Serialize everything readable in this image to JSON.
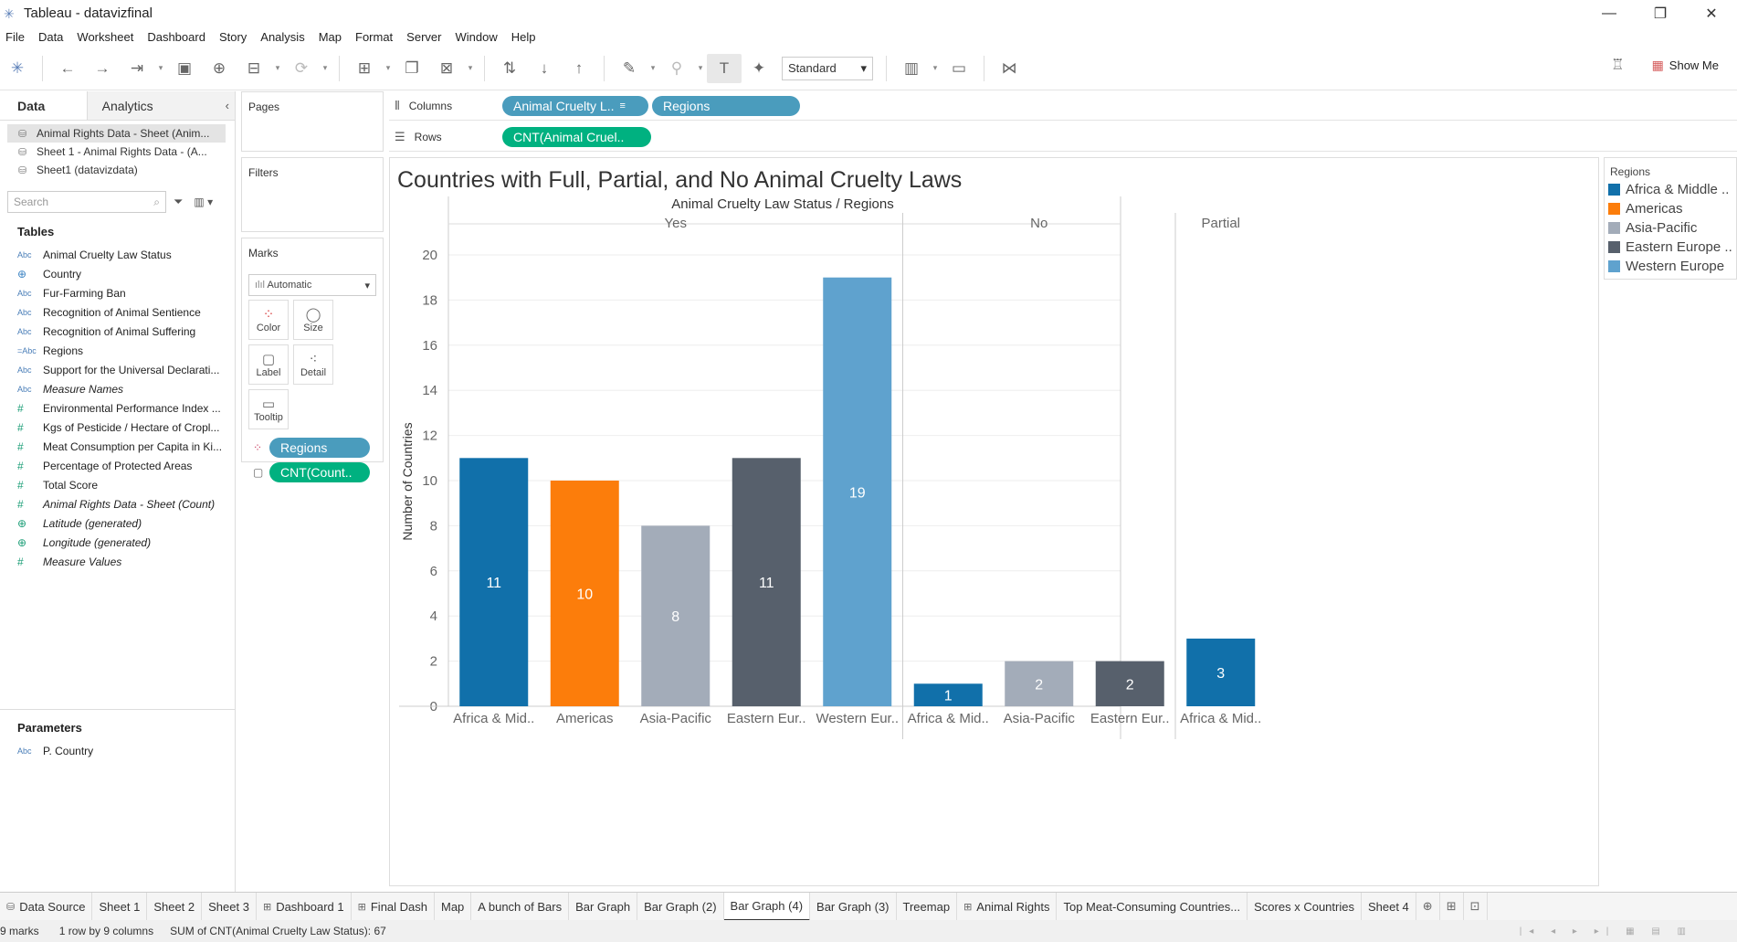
{
  "window": {
    "title": "Tableau - datavizfinal",
    "minimize": "—",
    "restore": "❐",
    "close": "✕"
  },
  "menu": [
    "File",
    "Data",
    "Worksheet",
    "Dashboard",
    "Story",
    "Analysis",
    "Map",
    "Format",
    "Server",
    "Window",
    "Help"
  ],
  "toolbar": {
    "fit_value": "Standard",
    "show_me_label": "Show Me"
  },
  "datapane": {
    "tab_data": "Data",
    "tab_analytics": "Analytics",
    "datasources": [
      "Animal Rights Data - Sheet (Anim...",
      "Sheet 1 - Animal Rights Data - (A...",
      "Sheet1 (datavizdata)"
    ],
    "search_placeholder": "Search",
    "tables_title": "Tables",
    "fields": [
      {
        "type": "Abc",
        "label": "Animal Cruelty Law Status"
      },
      {
        "type": "geo",
        "label": "Country"
      },
      {
        "type": "Abc",
        "label": "Fur-Farming Ban"
      },
      {
        "type": "Abc",
        "label": "Recognition of Animal Sentience"
      },
      {
        "type": "Abc",
        "label": "Recognition of Animal Suffering"
      },
      {
        "type": "Abc",
        "label": "Regions"
      },
      {
        "type": "Abc",
        "label": "Support for the Universal Declarati..."
      },
      {
        "type": "Abc",
        "label": "Measure Names",
        "italic": true
      },
      {
        "type": "#",
        "label": "Environmental Performance Index ..."
      },
      {
        "type": "#",
        "label": "Kgs of Pesticide / Hectare of Cropl..."
      },
      {
        "type": "#",
        "label": "Meat Consumption per Capita in Ki..."
      },
      {
        "type": "#",
        "label": "Percentage of Protected Areas"
      },
      {
        "type": "#",
        "label": "Total Score"
      },
      {
        "type": "#",
        "label": "Animal Rights Data - Sheet (Count)",
        "italic": true
      },
      {
        "type": "geo",
        "label": "Latitude (generated)",
        "italic": true
      },
      {
        "type": "geo",
        "label": "Longitude (generated)",
        "italic": true
      },
      {
        "type": "#",
        "label": "Measure Values",
        "italic": true
      }
    ],
    "parameters_title": "Parameters",
    "parameters": [
      {
        "type": "Abc",
        "label": "P. Country"
      }
    ]
  },
  "cards": {
    "pages": "Pages",
    "filters": "Filters",
    "marks": "Marks",
    "mark_type": "Automatic",
    "buttons": [
      "Color",
      "Size",
      "Label",
      "Detail",
      "Tooltip"
    ],
    "mark_pills": [
      "Regions",
      "CNT(Count.."
    ]
  },
  "shelves": {
    "columns_label": "Columns",
    "rows_label": "Rows",
    "columns_pills": [
      "Animal Cruelty L..",
      "Regions"
    ],
    "rows_pills": [
      "CNT(Animal Cruel.."
    ]
  },
  "colors": {
    "Africa & Middle ..": "#1170aa",
    "Americas": "#fc7d0b",
    "Asia-Pacific": "#a3acb9",
    "Eastern Europe ..": "#57606c",
    "Western Europe": "#5fa2ce"
  },
  "chart_data": {
    "type": "bar",
    "title": "Countries with Full, Partial, and No Animal Cruelty Laws",
    "header": "Animal Cruelty Law Status  /  Regions",
    "ylabel": "Number of Countries",
    "ylim": [
      0,
      20
    ],
    "yticks": [
      0,
      2,
      4,
      6,
      8,
      10,
      12,
      14,
      16,
      18,
      20
    ],
    "groups": [
      {
        "name": "Yes",
        "bars": [
          {
            "category": "Africa & Mid..",
            "region": "Africa & Middle ..",
            "value": 11
          },
          {
            "category": "Americas",
            "region": "Americas",
            "value": 10
          },
          {
            "category": "Asia-Pacific",
            "region": "Asia-Pacific",
            "value": 8
          },
          {
            "category": "Eastern Eur..",
            "region": "Eastern Europe ..",
            "value": 11
          },
          {
            "category": "Western Eur..",
            "region": "Western Europe",
            "value": 19
          }
        ]
      },
      {
        "name": "No",
        "bars": [
          {
            "category": "Africa & Mid..",
            "region": "Africa & Middle ..",
            "value": 1
          },
          {
            "category": "Asia-Pacific",
            "region": "Asia-Pacific",
            "value": 2
          },
          {
            "category": "Eastern Eur..",
            "region": "Eastern Europe ..",
            "value": 2
          }
        ]
      },
      {
        "name": "Partial",
        "bars": [
          {
            "category": "Africa & Mid..",
            "region": "Africa & Middle ..",
            "value": 3
          }
        ]
      }
    ],
    "grid": true
  },
  "legend": {
    "title": "Regions",
    "items": [
      "Africa & Middle ..",
      "Americas",
      "Asia-Pacific",
      "Eastern Europe ..",
      "Western Europe"
    ]
  },
  "sheet_tabs": [
    {
      "label": "Data Source",
      "icon": "datasource"
    },
    {
      "label": "Sheet 1"
    },
    {
      "label": "Sheet 2"
    },
    {
      "label": "Sheet 3"
    },
    {
      "label": "Dashboard 1",
      "icon": "dashboard"
    },
    {
      "label": "Final Dash",
      "icon": "dashboard"
    },
    {
      "label": "Map"
    },
    {
      "label": "A bunch of Bars"
    },
    {
      "label": "Bar Graph"
    },
    {
      "label": "Bar Graph (2)"
    },
    {
      "label": "Bar Graph (4)",
      "active": true
    },
    {
      "label": "Bar Graph (3)"
    },
    {
      "label": "Treemap"
    },
    {
      "label": "Animal Rights",
      "icon": "dashboard"
    },
    {
      "label": "Top Meat-Consuming Countries..."
    },
    {
      "label": "Scores x Countries"
    },
    {
      "label": "Sheet 4"
    }
  ],
  "status": {
    "marks": "9 marks",
    "dims": "1 row by 9 columns",
    "sum": "SUM of CNT(Animal Cruelty Law Status): 67"
  }
}
